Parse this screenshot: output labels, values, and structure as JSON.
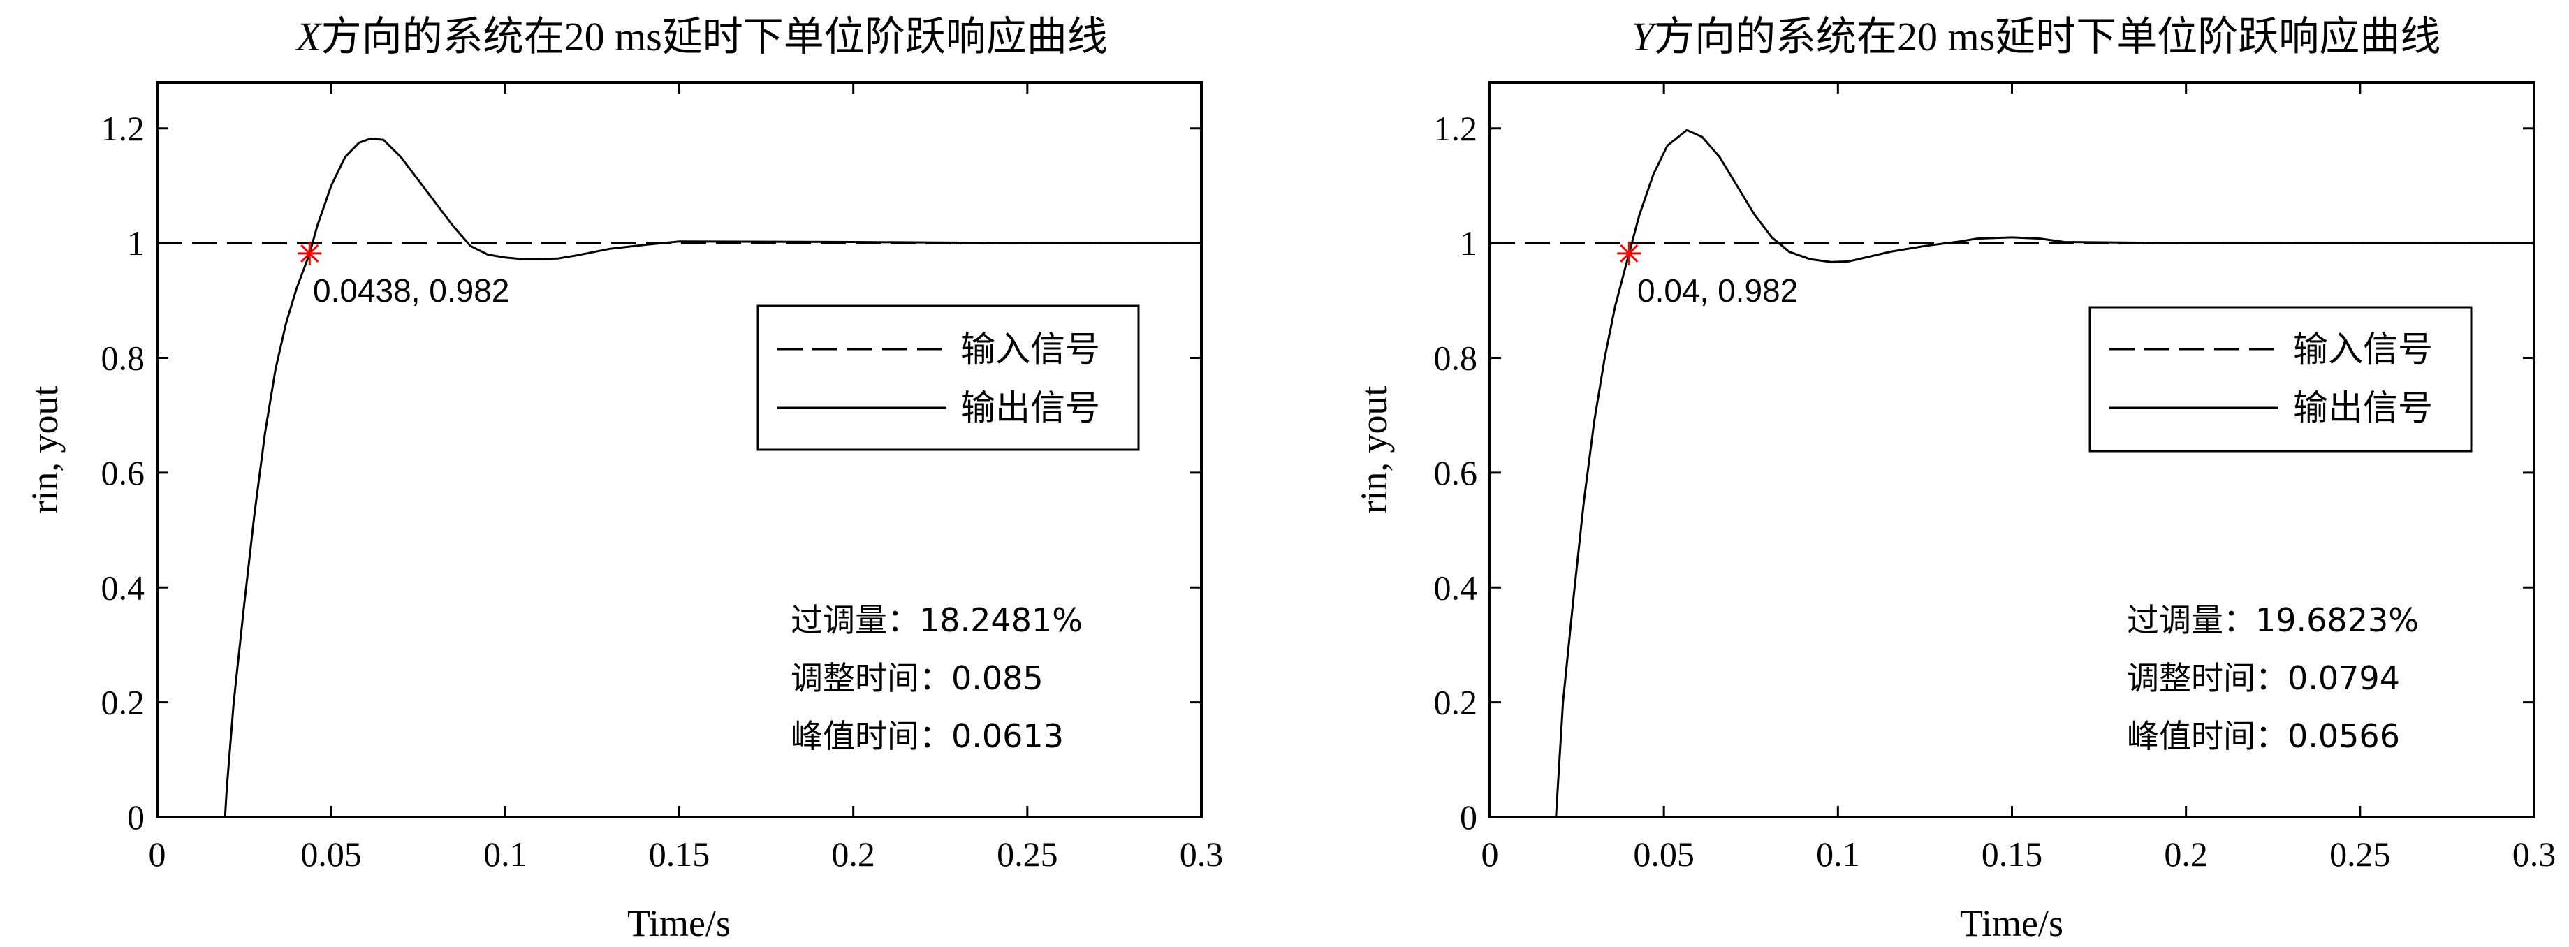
{
  "chart_data": [
    {
      "type": "line",
      "title_var": "X",
      "title_rest": "方向的系统在20 ms延时下单位阶跃响应曲线",
      "xlabel": "Time/s",
      "ylabel": "rin, yout",
      "xlim": [
        0,
        0.3
      ],
      "ylim": [
        0,
        1.28
      ],
      "xticks": [
        0,
        0.05,
        0.1,
        0.15,
        0.2,
        0.25,
        0.3
      ],
      "xtick_labels": [
        "0",
        "0.05",
        "0.1",
        "0.15",
        "0.2",
        "0.25",
        "0.3"
      ],
      "yticks": [
        0,
        0.2,
        0.4,
        0.6,
        0.8,
        1,
        1.2
      ],
      "ytick_labels": [
        "0",
        "0.2",
        "0.4",
        "0.6",
        "0.8",
        "1",
        "1.2"
      ],
      "grid": false,
      "legend_position": "right",
      "series": [
        {
          "name": "输入信号",
          "style": "dashed",
          "x": [
            0,
            0.3
          ],
          "y": [
            1,
            1
          ]
        },
        {
          "name": "输出信号",
          "style": "solid",
          "x": [
            0.0195,
            0.02,
            0.022,
            0.025,
            0.028,
            0.031,
            0.034,
            0.037,
            0.04,
            0.0438,
            0.046,
            0.05,
            0.054,
            0.058,
            0.0613,
            0.065,
            0.07,
            0.075,
            0.08,
            0.085,
            0.09,
            0.095,
            0.1,
            0.105,
            0.11,
            0.115,
            0.12,
            0.13,
            0.14,
            0.15,
            0.2,
            0.25,
            0.3
          ],
          "y": [
            0,
            0.05,
            0.2,
            0.37,
            0.53,
            0.67,
            0.78,
            0.86,
            0.92,
            0.982,
            1.03,
            1.1,
            1.15,
            1.175,
            1.182,
            1.18,
            1.15,
            1.11,
            1.07,
            1.03,
            0.995,
            0.98,
            0.975,
            0.972,
            0.972,
            0.973,
            0.978,
            0.99,
            0.997,
            1.003,
            1.002,
            1.0,
            1.0
          ]
        }
      ],
      "annotation": {
        "x": 0.0438,
        "y": 0.982,
        "text": "0.0438, 0.982"
      },
      "stats": [
        "过调量：18.2481%",
        "调整时间：0.085",
        "峰值时间：0.0613"
      ]
    },
    {
      "type": "line",
      "title_var": "Y",
      "title_rest": "方向的系统在20 ms延时下单位阶跃响应曲线",
      "xlabel": "Time/s",
      "ylabel": "rin, yout",
      "xlim": [
        0,
        0.3
      ],
      "ylim": [
        0,
        1.28
      ],
      "xticks": [
        0,
        0.05,
        0.1,
        0.15,
        0.2,
        0.25,
        0.3
      ],
      "xtick_labels": [
        "0",
        "0.05",
        "0.1",
        "0.15",
        "0.2",
        "0.25",
        "0.3"
      ],
      "yticks": [
        0,
        0.2,
        0.4,
        0.6,
        0.8,
        1,
        1.2
      ],
      "ytick_labels": [
        "0",
        "0.2",
        "0.4",
        "0.6",
        "0.8",
        "1",
        "1.2"
      ],
      "grid": false,
      "legend_position": "right",
      "series": [
        {
          "name": "输入信号",
          "style": "dashed",
          "x": [
            0,
            0.3
          ],
          "y": [
            1,
            1
          ]
        },
        {
          "name": "输出信号",
          "style": "solid",
          "x": [
            0.019,
            0.0195,
            0.021,
            0.024,
            0.027,
            0.03,
            0.033,
            0.036,
            0.04,
            0.043,
            0.047,
            0.051,
            0.0566,
            0.061,
            0.066,
            0.071,
            0.076,
            0.081,
            0.086,
            0.092,
            0.098,
            0.103,
            0.108,
            0.115,
            0.125,
            0.135,
            0.14,
            0.15,
            0.158,
            0.165,
            0.2,
            0.25,
            0.3
          ],
          "y": [
            0,
            0.05,
            0.2,
            0.38,
            0.55,
            0.69,
            0.8,
            0.89,
            0.982,
            1.05,
            1.12,
            1.17,
            1.197,
            1.185,
            1.15,
            1.1,
            1.05,
            1.01,
            0.985,
            0.972,
            0.967,
            0.968,
            0.975,
            0.985,
            0.995,
            1.003,
            1.008,
            1.01,
            1.008,
            1.002,
            1.0,
            1.0,
            1.0
          ]
        }
      ],
      "annotation": {
        "x": 0.04,
        "y": 0.982,
        "text": "0.04, 0.982"
      },
      "stats": [
        "过调量：19.6823%",
        "调整时间：0.0794",
        "峰值时间：0.0566"
      ]
    }
  ],
  "colors": {
    "axes": "#000000",
    "marker": "#ff0000"
  }
}
